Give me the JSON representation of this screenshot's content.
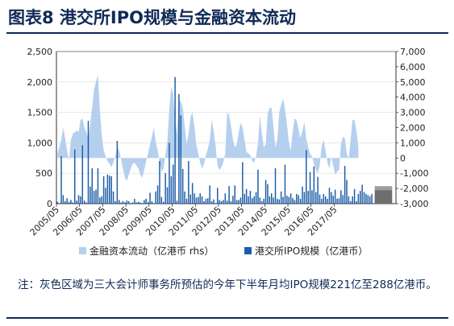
{
  "title": "图表8  港交所IPO规模与金融资本流动",
  "note": "注：灰色区域为三大会计师事务所预估的今年下半年月均IPO规模221亿至288亿港币。",
  "chart_data": {
    "type": "bar+area",
    "x_tick_labels": [
      "2005/05",
      "2006/05",
      "2007/05",
      "2008/05",
      "2009/05",
      "2010/05",
      "2011/05",
      "2012/05",
      "2013/05",
      "2014/05",
      "2015/05",
      "2016/05",
      "2017/05"
    ],
    "y_left_ticks": [
      "0",
      "500",
      "1,000",
      "1,500",
      "2,000",
      "2,500"
    ],
    "y_left_range": [
      0,
      2500
    ],
    "y_right_ticks": [
      "-3,000",
      "-2,000",
      "-1,000",
      "0",
      "1,000",
      "2,000",
      "3,000",
      "4,000",
      "5,000",
      "6,000",
      "7,000"
    ],
    "y_right_range": [
      -3000,
      7000
    ],
    "start_month": "2005/05",
    "colors": {
      "area": "#b5d0ee",
      "bars": "#1d5da8",
      "forecast": "#8a8a8a",
      "text": "#0f2a57"
    },
    "grid": true,
    "legend_position": "bottom",
    "forecast_band": {
      "from": 221,
      "to": 288,
      "unit": "亿港币"
    },
    "series": [
      {
        "name": "金融资本流动（亿港币 rhs）",
        "axis": "right",
        "type": "area",
        "values": [
          300,
          700,
          1200,
          2000,
          1300,
          500,
          -200,
          1200,
          1600,
          1700,
          1800,
          1700,
          2500,
          2600,
          2000,
          1700,
          1300,
          2200,
          3300,
          4500,
          5000,
          5500,
          3200,
          1500,
          500,
          100,
          -200,
          -400,
          -600,
          -300,
          100,
          700,
          500,
          -100,
          -700,
          -1300,
          -1500,
          -1100,
          -700,
          -400,
          -300,
          -500,
          -700,
          -1100,
          -1300,
          -800,
          -200,
          300,
          900,
          1400,
          2000,
          1000,
          500,
          -300,
          -900,
          -700,
          200,
          1100,
          3200,
          4700,
          4200,
          2500,
          1600,
          3800,
          3700,
          3300,
          2100,
          900,
          1600,
          2700,
          3000,
          2100,
          900,
          300,
          -300,
          -700,
          -400,
          200,
          600,
          1200,
          2500,
          1800,
          800,
          -500,
          -800,
          -600,
          -300,
          300,
          3000,
          2800,
          2100,
          1200,
          700,
          900,
          1700,
          2300,
          2000,
          1200,
          400,
          300,
          200,
          -200,
          -300,
          100,
          1000,
          2800,
          1600,
          700,
          900,
          2900,
          3300,
          3300,
          2100,
          700,
          1200,
          3000,
          3500,
          3900,
          3200,
          2200,
          1000,
          500,
          1800,
          2600,
          2500,
          1900,
          1300,
          1800,
          2400,
          1300,
          700,
          300,
          100,
          -400,
          -800,
          -1000,
          -500,
          800,
          1200,
          500,
          -300,
          -700,
          100,
          -500,
          -1100,
          -900,
          -800,
          900,
          1400,
          1300,
          300,
          -100,
          1200,
          2500,
          2500,
          1800,
          700
        ]
      },
      {
        "name": "港交所IPO规模（亿港币）",
        "axis": "left",
        "type": "bar",
        "values": [
          30,
          10,
          780,
          140,
          40,
          90,
          30,
          60,
          20,
          890,
          50,
          140,
          120,
          960,
          50,
          20,
          1360,
          280,
          580,
          210,
          230,
          580,
          100,
          120,
          450,
          260,
          480,
          460,
          450,
          200,
          40,
          1030,
          60,
          20,
          40,
          20,
          50,
          40,
          10,
          20,
          80,
          20,
          30,
          20,
          10,
          60,
          80,
          30,
          180,
          40,
          10,
          200,
          300,
          700,
          110,
          30,
          500,
          270,
          1000,
          450,
          640,
          2080,
          50,
          1800,
          1450,
          570,
          200,
          80,
          700,
          150,
          340,
          170,
          100,
          110,
          170,
          120,
          40,
          80,
          90,
          300,
          40,
          70,
          10,
          260,
          60,
          40,
          60,
          170,
          50,
          290,
          40,
          130,
          300,
          60,
          60,
          100,
          680,
          160,
          240,
          120,
          210,
          90,
          120,
          190,
          560,
          100,
          40,
          80,
          390,
          320,
          120,
          170,
          100,
          580,
          80,
          70,
          200,
          110,
          640,
          130,
          110,
          170,
          90,
          60,
          160,
          140,
          80,
          280,
          190,
          880,
          210,
          520,
          220,
          610,
          190,
          440,
          150,
          80,
          160,
          120,
          80,
          260,
          190,
          130,
          230,
          80,
          90,
          220,
          140,
          620,
          390,
          120,
          40,
          120,
          240,
          40,
          160,
          210,
          310,
          190,
          160,
          140,
          120,
          160
        ]
      }
    ]
  }
}
